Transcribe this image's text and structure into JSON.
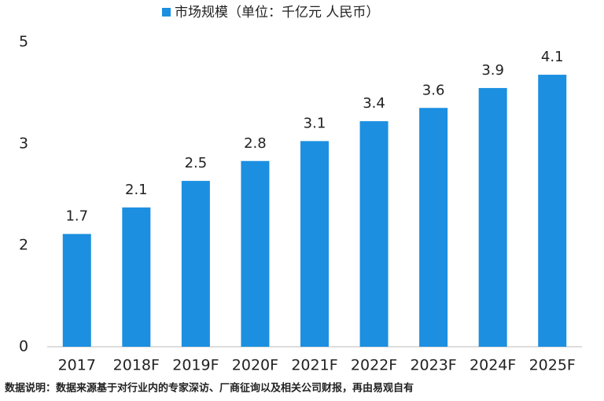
{
  "chart_data": {
    "type": "bar",
    "categories": [
      "2017",
      "2018F",
      "2019F",
      "2020F",
      "2021F",
      "2022F",
      "2023F",
      "2024F",
      "2025F"
    ],
    "series": [
      {
        "name": "市场规模（单位：千亿元 人民币）",
        "color": "#1c8fe0",
        "values": [
          1.7,
          2.1,
          2.5,
          2.8,
          3.1,
          3.4,
          3.6,
          3.9,
          4.1
        ]
      }
    ],
    "ylim": [
      0,
      4.8
    ],
    "yticks": [
      0,
      {
        "value": 1.53,
        "label": "2"
      },
      {
        "value": 3.06,
        "label": "3"
      },
      {
        "value": 4.59,
        "label": "5"
      }
    ],
    "grid": false,
    "legend": "top",
    "note": "数据说明：数据来源基于对行业内的专家深访、厂商征询以及相关公司财报，再由易观自有"
  }
}
